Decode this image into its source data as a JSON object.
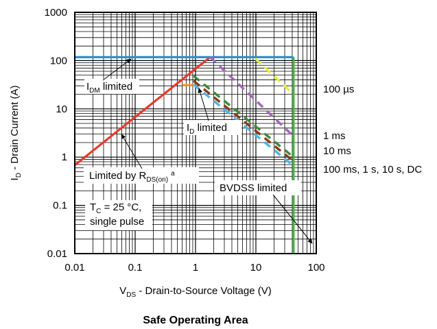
{
  "chart_data": {
    "type": "line",
    "title": "Safe Operating Area",
    "xlabel": {
      "main": "V",
      "sub": "DS",
      "rest": " - Drain-to-Source Voltage (V)"
    },
    "ylabel": {
      "main": "I",
      "sub": "D",
      "rest": " - Drain Current (A)"
    },
    "x_scale": "log",
    "y_scale": "log",
    "xlim": [
      0.01,
      100
    ],
    "ylim": [
      0.01,
      1000
    ],
    "grid": true,
    "x_ticks": [
      "0.01",
      "0.1",
      "1",
      "10",
      "100"
    ],
    "y_ticks": [
      "0.01",
      "0.1",
      "1",
      "10",
      "100",
      "1000"
    ],
    "series": [
      {
        "color": "#e8382b",
        "dash": false,
        "x": [
          0.01,
          1.75
        ],
        "y": [
          0.68,
          118
        ]
      },
      {
        "color": "#2e8fd0",
        "dash": false,
        "x": [
          0.01,
          42
        ],
        "y": [
          118,
          118
        ]
      },
      {
        "color": "#f7941d",
        "dash": false,
        "x": [
          0.6,
          0.93
        ],
        "y": [
          31,
          31
        ]
      },
      {
        "color": "#48b244",
        "dash": false,
        "x": [
          42,
          42
        ],
        "y": [
          0.01,
          118
        ]
      },
      {
        "color": "#e6ee3c",
        "dash": true,
        "x": [
          9.8,
          42
        ],
        "y": [
          110,
          20
        ]
      },
      {
        "color": "#a765bd",
        "dash": true,
        "x": [
          1.75,
          42
        ],
        "y": [
          118,
          2.7
        ]
      },
      {
        "color": "#3e8b3c",
        "dash": true,
        "x": [
          0.93,
          42
        ],
        "y": [
          48,
          1.0
        ]
      },
      {
        "color": "#8a3a1c",
        "dash": true,
        "x": [
          0.93,
          42
        ],
        "y": [
          38,
          0.82
        ]
      },
      {
        "color": "#4db6e6",
        "dash": true,
        "x": [
          0.93,
          42
        ],
        "y": [
          32,
          0.66
        ]
      }
    ],
    "annotations": {
      "idm": {
        "main": "I",
        "sub": "DM",
        "rest": " limited"
      },
      "id": {
        "main": "I",
        "sub": "D",
        "rest": " limited"
      },
      "rds": {
        "main": "Limited by R",
        "sub": "DS(on)",
        "sup": "a"
      },
      "tc_line1": {
        "main": "T",
        "sub": "C",
        "rest": " = 25 °C,"
      },
      "tc_line2": "single pulse",
      "bvdss": "BVDSS limited",
      "t100us": "100 µs",
      "t1ms": "1 ms",
      "t10ms": "10 ms",
      "t100ms": "100 ms, 1 s, 10 s, DC"
    }
  }
}
